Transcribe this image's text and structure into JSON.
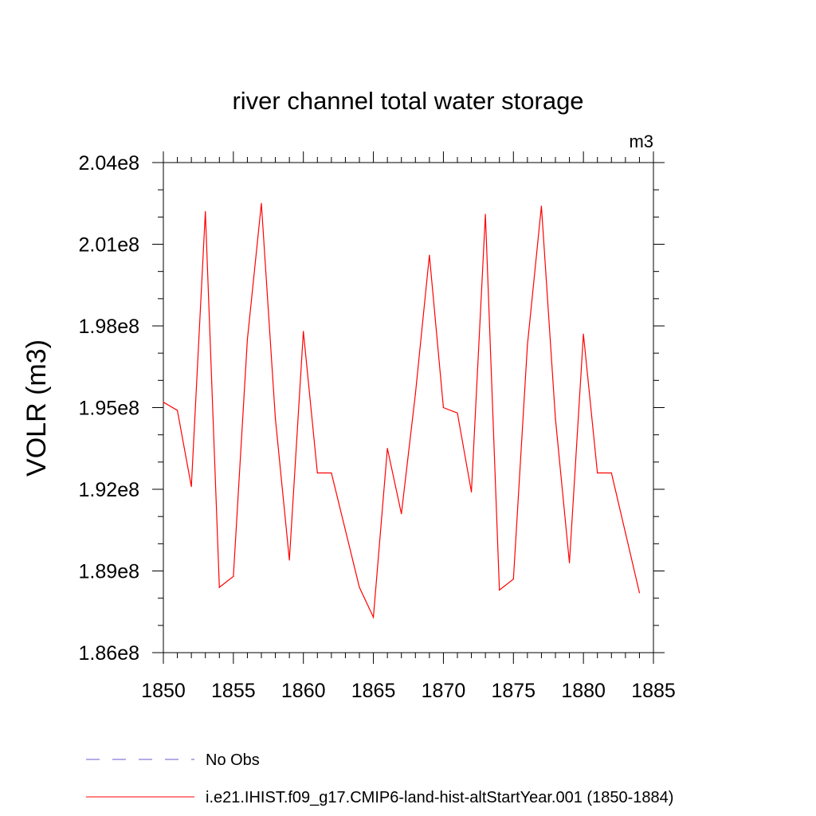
{
  "chart_data": {
    "type": "line",
    "title": "river channel total water storage",
    "units_label": "m3",
    "ylabel": "VOLR  (m3)",
    "xlabel": "",
    "xlim": [
      1850,
      1885
    ],
    "ylim": [
      186000000.0,
      204000000.0
    ],
    "x_ticks": [
      1850,
      1855,
      1860,
      1865,
      1870,
      1875,
      1880,
      1885
    ],
    "x_tick_labels": [
      "1850",
      "1855",
      "1860",
      "1865",
      "1870",
      "1875",
      "1880",
      "1885"
    ],
    "y_ticks": [
      186000000.0,
      189000000.0,
      192000000.0,
      195000000.0,
      198000000.0,
      201000000.0,
      204000000.0
    ],
    "y_tick_labels": [
      "1.86e8",
      "1.89e8",
      "1.92e8",
      "1.95e8",
      "1.98e8",
      "2.01e8",
      "2.04e8"
    ],
    "y_minor_step": 1000000.0,
    "grid": false,
    "legend_position": "bottom",
    "series": [
      {
        "name": "No Obs",
        "color": "#6a5acd",
        "style": "dashed",
        "x": [],
        "values": []
      },
      {
        "name": "i.e21.IHIST.f09_g17.CMIP6-land-hist-altStartYear.001 (1850-1884)",
        "color": "#ff0000",
        "style": "solid",
        "x": [
          1850,
          1851,
          1852,
          1853,
          1854,
          1855,
          1856,
          1857,
          1858,
          1859,
          1860,
          1861,
          1862,
          1863,
          1864,
          1865,
          1866,
          1867,
          1868,
          1869,
          1870,
          1871,
          1872,
          1873,
          1874,
          1875,
          1876,
          1877,
          1878,
          1879,
          1880,
          1881,
          1882,
          1883,
          1884
        ],
        "values": [
          195200000.0,
          194900000.0,
          192100000.0,
          202200000.0,
          188400000.0,
          188800000.0,
          197500000.0,
          202500000.0,
          194600000.0,
          189400000.0,
          197800000.0,
          192600000.0,
          192600000.0,
          190500000.0,
          188400000.0,
          187300000.0,
          193500000.0,
          191100000.0,
          195500000.0,
          200600000.0,
          195000000.0,
          194800000.0,
          191900000.0,
          202100000.0,
          188300000.0,
          188700000.0,
          197300000.0,
          202400000.0,
          194600000.0,
          189300000.0,
          197700000.0,
          192600000.0,
          192600000.0,
          190400000.0,
          188200000.0
        ]
      }
    ]
  }
}
